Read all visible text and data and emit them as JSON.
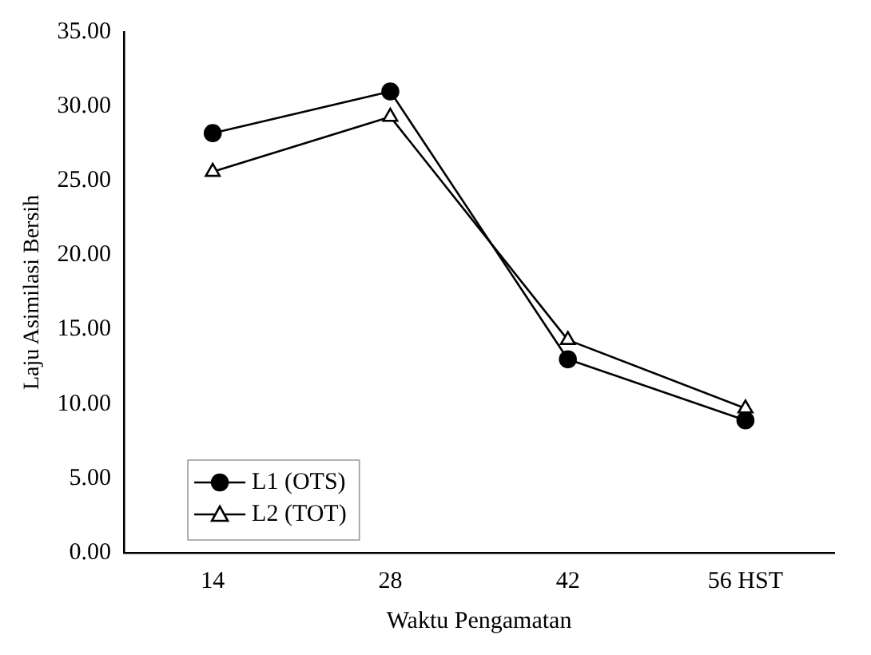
{
  "chart_data": {
    "type": "line",
    "xlabel": "Waktu Pengamatan",
    "ylabel": "Laju Asimilasi Bersih",
    "categories": [
      "14",
      "28",
      "42",
      "56 HST"
    ],
    "series": [
      {
        "name": "L1 (OTS)",
        "color": "#000000",
        "marker": "circle",
        "values": [
          28.2,
          31.0,
          13.0,
          8.9
        ]
      },
      {
        "name": "L2 (TOT)",
        "color": "#000000",
        "marker": "triangle",
        "values": [
          25.6,
          29.3,
          14.3,
          9.7
        ]
      }
    ],
    "ylim": [
      0,
      35
    ],
    "yticks": [
      {
        "value": 0,
        "label": "0.00"
      },
      {
        "value": 5,
        "label": "5.00"
      },
      {
        "value": 10,
        "label": "10.00"
      },
      {
        "value": 15,
        "label": "15.00"
      },
      {
        "value": 20,
        "label": "20.00"
      },
      {
        "value": 25,
        "label": "25.00"
      },
      {
        "value": 30,
        "label": "30.00"
      },
      {
        "value": 35,
        "label": "35.00"
      }
    ],
    "grid": false,
    "legend": "bottom left"
  }
}
